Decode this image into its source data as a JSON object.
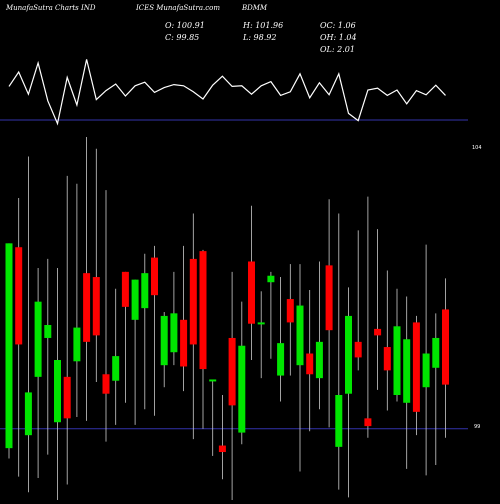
{
  "header": {
    "site_left": "MunafaSutra Charts IND",
    "site_mid": "ICES  MunafaSutra.com",
    "symbol": "BDMM"
  },
  "stats": {
    "open": "O: 100.91",
    "high": "H: 101.96",
    "oc": "OC: 1.06",
    "close": "C: 99.85",
    "low": "L: 98.92",
    "oh": "OH: 1.04",
    "ol": "OL: 2.01"
  },
  "colors": {
    "up": "#00e600",
    "down": "#ff0000",
    "wick": "#cccccc",
    "line": "#ffffff",
    "guide": "#3333aa",
    "background": "#000000"
  },
  "chart_data": [
    {
      "type": "line",
      "x": [
        1,
        2,
        3,
        4,
        5,
        6,
        7,
        8,
        9,
        10,
        11,
        12,
        13,
        14,
        15,
        16,
        17,
        18,
        19,
        20,
        21,
        22,
        23,
        24,
        25,
        26,
        27,
        28,
        29,
        30,
        31,
        32,
        33,
        34,
        35,
        36,
        37,
        38,
        39,
        40,
        41,
        42,
        43,
        44,
        45,
        46
      ],
      "values": [
        101.06,
        101.3,
        100.93,
        101.45,
        100.82,
        100.44,
        101.21,
        100.75,
        101.51,
        100.84,
        100.99,
        101.1,
        100.9,
        101.07,
        101.13,
        100.96,
        101.04,
        101.09,
        101.07,
        100.97,
        100.85,
        101.08,
        101.23,
        101.06,
        101.07,
        100.93,
        101.07,
        101.14,
        100.91,
        100.97,
        101.27,
        100.87,
        101.12,
        100.92,
        101.27,
        100.61,
        100.49,
        101.0,
        101.03,
        100.91,
        101.0,
        100.77,
        100.99,
        100.92,
        101.08,
        100.91
      ],
      "ylim": [
        98.5,
        102.5
      ],
      "reference_lines": [
        {
          "value": 100.5,
          "label": "104"
        }
      ]
    },
    {
      "type": "candlestick",
      "x": [
        1,
        2,
        3,
        4,
        5,
        6,
        7,
        8,
        9,
        10,
        11,
        12,
        13,
        14,
        15,
        16,
        17,
        18,
        19,
        20,
        21,
        22,
        23,
        24,
        25,
        26,
        27,
        28,
        29,
        30,
        31,
        32,
        33,
        34,
        35,
        36,
        37,
        38,
        39,
        40,
        41,
        42,
        43,
        44,
        45,
        46
      ],
      "open": [
        98.4,
        99.95,
        98.5,
        98.95,
        99.25,
        98.6,
        98.95,
        99.07,
        99.75,
        99.72,
        98.97,
        98.92,
        99.76,
        99.39,
        99.48,
        99.87,
        99.04,
        99.14,
        99.39,
        99.86,
        99.92,
        98.92,
        98.42,
        99.25,
        98.52,
        99.84,
        99.36,
        99.68,
        98.96,
        99.55,
        99.04,
        99.13,
        98.94,
        99.81,
        98.41,
        98.82,
        99.22,
        98.63,
        99.32,
        99.18,
        98.81,
        98.75,
        99.37,
        98.87,
        99.02,
        99.47
      ],
      "close": [
        99.98,
        99.2,
        98.83,
        99.53,
        99.35,
        99.08,
        98.63,
        99.33,
        99.22,
        99.27,
        98.82,
        99.11,
        99.49,
        99.7,
        99.75,
        99.58,
        99.42,
        99.44,
        99.03,
        99.2,
        99.01,
        98.93,
        98.37,
        98.73,
        99.19,
        99.36,
        99.37,
        99.73,
        99.21,
        99.37,
        99.5,
        98.97,
        99.22,
        99.31,
        98.81,
        99.42,
        99.1,
        98.57,
        99.27,
        99.0,
        99.34,
        99.24,
        98.68,
        99.13,
        99.25,
        98.89
      ],
      "high": [
        99.98,
        100.33,
        100.65,
        99.79,
        99.86,
        99.79,
        100.5,
        100.44,
        100.8,
        100.71,
        100.39,
        99.63,
        99.76,
        99.7,
        99.9,
        99.96,
        99.45,
        99.76,
        99.96,
        100.21,
        99.93,
        98.92,
        98.81,
        99.76,
        99.53,
        100.27,
        99.61,
        99.76,
        99.72,
        99.82,
        99.82,
        99.62,
        99.84,
        100.32,
        100.21,
        99.64,
        100.08,
        100.34,
        100.09,
        99.77,
        99.63,
        99.57,
        99.42,
        99.97,
        99.44,
        99.71
      ],
      "low": [
        98.32,
        98.18,
        98.06,
        98.17,
        98.35,
        98.0,
        98.12,
        98.64,
        98.61,
        98.91,
        98.45,
        98.58,
        98.75,
        98.58,
        98.7,
        98.65,
        98.87,
        99.04,
        98.84,
        98.47,
        98.55,
        98.34,
        98.16,
        97.96,
        98.43,
        99.08,
        98.94,
        99.09,
        98.76,
        98.96,
        98.22,
        98.53,
        98.7,
        98.56,
        98.08,
        98.02,
        99.0,
        98.48,
        98.85,
        98.69,
        98.76,
        98.24,
        98.5,
        98.19,
        98.27,
        98.48
      ],
      "ylim": [
        98.0,
        100.7
      ],
      "reference_lines": [
        {
          "value": 98.55,
          "label": "99"
        }
      ]
    }
  ]
}
